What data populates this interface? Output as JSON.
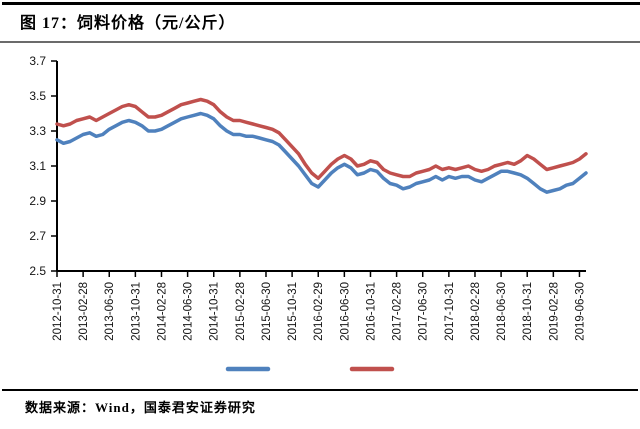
{
  "header": {
    "title": "图 17：饲料价格（元/公斤）"
  },
  "footer": {
    "source_note": "数据来源：Wind，国泰君安证券研究"
  },
  "colors": {
    "axis": "#000000",
    "blue_series": "#4F81BD",
    "red_series": "#C0504D",
    "rule_top": "#000000",
    "rule_under_title": "#6b6b6b"
  },
  "chart_data": {
    "type": "line",
    "figure_label": "图 17",
    "title": "饲料价格（元/公斤）",
    "ylabel": "",
    "xlabel": "",
    "ylim": [
      2.5,
      3.7
    ],
    "y_ticks": [
      3.7,
      3.5,
      3.3,
      3.1,
      2.9,
      2.7,
      2.5
    ],
    "grid": false,
    "legend_position": "bottom",
    "legend_labels_visible": false,
    "x_tick_every": 4,
    "x_tick_labels": [
      "2012-10-31",
      "2013-02-28",
      "2013-06-30",
      "2013-10-31",
      "2014-02-28",
      "2014-06-30",
      "2014-10-31",
      "2015-02-28",
      "2015-06-30",
      "2015-10-31",
      "2016-02-29",
      "2016-06-30",
      "2016-10-31",
      "2017-02-28",
      "2017-06-30",
      "2017-10-31",
      "2018-02-28",
      "2018-06-30",
      "2018-10-31",
      "2019-02-28",
      "2019-06-30"
    ],
    "x": [
      "2012-10",
      "2012-11",
      "2012-12",
      "2013-01",
      "2013-02",
      "2013-03",
      "2013-04",
      "2013-05",
      "2013-06",
      "2013-07",
      "2013-08",
      "2013-09",
      "2013-10",
      "2013-11",
      "2013-12",
      "2014-01",
      "2014-02",
      "2014-03",
      "2014-04",
      "2014-05",
      "2014-06",
      "2014-07",
      "2014-08",
      "2014-09",
      "2014-10",
      "2014-11",
      "2014-12",
      "2015-01",
      "2015-02",
      "2015-03",
      "2015-04",
      "2015-05",
      "2015-06",
      "2015-07",
      "2015-08",
      "2015-09",
      "2015-10",
      "2015-11",
      "2015-12",
      "2016-01",
      "2016-02",
      "2016-03",
      "2016-04",
      "2016-05",
      "2016-06",
      "2016-07",
      "2016-08",
      "2016-09",
      "2016-10",
      "2016-11",
      "2016-12",
      "2017-01",
      "2017-02",
      "2017-03",
      "2017-04",
      "2017-05",
      "2017-06",
      "2017-07",
      "2017-08",
      "2017-09",
      "2017-10",
      "2017-11",
      "2017-12",
      "2018-01",
      "2018-02",
      "2018-03",
      "2018-04",
      "2018-05",
      "2018-06",
      "2018-07",
      "2018-08",
      "2018-09",
      "2018-10",
      "2018-11",
      "2018-12",
      "2019-01",
      "2019-02",
      "2019-03",
      "2019-04",
      "2019-05",
      "2019-06",
      "2019-07"
    ],
    "series": [
      {
        "id": "blue",
        "color": "#4F81BD",
        "values": [
          3.25,
          3.23,
          3.24,
          3.26,
          3.28,
          3.29,
          3.27,
          3.28,
          3.31,
          3.33,
          3.35,
          3.36,
          3.35,
          3.33,
          3.3,
          3.3,
          3.31,
          3.33,
          3.35,
          3.37,
          3.38,
          3.39,
          3.4,
          3.39,
          3.37,
          3.33,
          3.3,
          3.28,
          3.28,
          3.27,
          3.27,
          3.26,
          3.25,
          3.24,
          3.22,
          3.18,
          3.14,
          3.1,
          3.05,
          3.0,
          2.98,
          3.02,
          3.06,
          3.09,
          3.11,
          3.09,
          3.05,
          3.06,
          3.08,
          3.07,
          3.03,
          3.0,
          2.99,
          2.97,
          2.98,
          3.0,
          3.01,
          3.02,
          3.04,
          3.02,
          3.04,
          3.03,
          3.04,
          3.04,
          3.02,
          3.01,
          3.03,
          3.05,
          3.07,
          3.07,
          3.06,
          3.05,
          3.03,
          3.0,
          2.97,
          2.95,
          2.96,
          2.97,
          2.99,
          3.0,
          3.03,
          3.06
        ]
      },
      {
        "id": "red",
        "color": "#C0504D",
        "values": [
          3.34,
          3.33,
          3.34,
          3.36,
          3.37,
          3.38,
          3.36,
          3.38,
          3.4,
          3.42,
          3.44,
          3.45,
          3.44,
          3.41,
          3.38,
          3.38,
          3.39,
          3.41,
          3.43,
          3.45,
          3.46,
          3.47,
          3.48,
          3.47,
          3.45,
          3.41,
          3.38,
          3.36,
          3.36,
          3.35,
          3.34,
          3.33,
          3.32,
          3.31,
          3.29,
          3.25,
          3.21,
          3.17,
          3.11,
          3.06,
          3.03,
          3.07,
          3.11,
          3.14,
          3.16,
          3.14,
          3.1,
          3.11,
          3.13,
          3.12,
          3.08,
          3.06,
          3.05,
          3.04,
          3.04,
          3.06,
          3.07,
          3.08,
          3.1,
          3.08,
          3.09,
          3.08,
          3.09,
          3.1,
          3.08,
          3.07,
          3.08,
          3.1,
          3.11,
          3.12,
          3.11,
          3.13,
          3.16,
          3.14,
          3.11,
          3.08,
          3.09,
          3.1,
          3.11,
          3.12,
          3.14,
          3.17
        ]
      }
    ]
  }
}
